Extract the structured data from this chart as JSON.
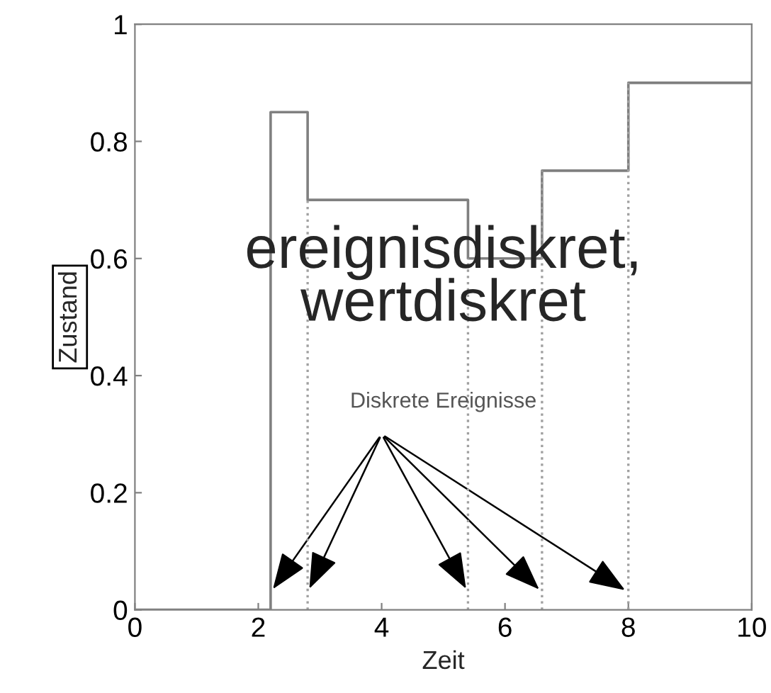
{
  "chart_data": {
    "type": "step",
    "xlabel": "Zeit",
    "ylabel": "Zustand",
    "annotations": [
      "ereignisdiskret,\nwertdiskret",
      {
        "text": "Diskrete Ereignisse",
        "x": 2.2,
        "y": 0.03
      }
    ],
    "series": [
      {
        "color": "#808080",
        "x": [
          0,
          2.2,
          2.8,
          5.4,
          6.6,
          8,
          10
        ],
        "values": [
          0,
          0.85,
          0.7,
          0.6,
          0.75,
          0.9,
          0.9
        ]
      }
    ],
    "xlim": [
      0,
      10
    ],
    "xticks": [
      0,
      2,
      4,
      6,
      8,
      10
    ],
    "ylim": [
      0,
      1
    ],
    "yticks": [
      0,
      0.2,
      0.4,
      0.6,
      0.8,
      1
    ],
    "ref_lines": [
      {
        "axis": "x",
        "value": 2.8,
        "color": "#a0a0a0",
        "line_style": "dotted"
      },
      {
        "axis": "x",
        "value": 5.4,
        "color": "#a0a0a0",
        "line_style": "dotted"
      },
      {
        "axis": "x",
        "value": 6.6,
        "color": "#a0a0a0",
        "line_style": "dotted"
      },
      {
        "axis": "x",
        "value": 8,
        "color": "#a0a0a0",
        "line_style": "dotted"
      }
    ],
    "grid": false,
    "legend": false
  }
}
